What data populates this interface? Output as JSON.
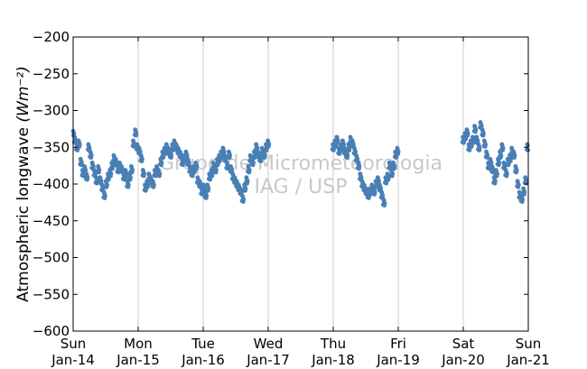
{
  "chart_data": {
    "type": "scatter",
    "title": "",
    "xlabel": "",
    "ylabel": "Atmospheric longwave",
    "ylabel_unit": "(Wm⁻²)",
    "xlim": [
      0,
      7
    ],
    "ylim": [
      -600,
      -200
    ],
    "grid": "vertical",
    "marker_color": "#4a7fb5",
    "watermark": [
      "Grupo de Micrometeorologia",
      "IAG / USP"
    ],
    "x_ticks": [
      {
        "value": 0,
        "day": "Sun",
        "date": "Jan-14"
      },
      {
        "value": 1,
        "day": "Mon",
        "date": "Jan-15"
      },
      {
        "value": 2,
        "day": "Tue",
        "date": "Jan-16"
      },
      {
        "value": 3,
        "day": "Wed",
        "date": "Jan-17"
      },
      {
        "value": 4,
        "day": "Thu",
        "date": "Jan-18"
      },
      {
        "value": 5,
        "day": "Fri",
        "date": "Jan-19"
      },
      {
        "value": 6,
        "day": "Sat",
        "date": "Jan-20"
      },
      {
        "value": 7,
        "day": "Sun",
        "date": "Jan-21"
      }
    ],
    "y_ticks": [
      -200,
      -250,
      -300,
      -350,
      -400,
      -450,
      -500,
      -550,
      -600
    ],
    "series": [
      {
        "segments": [
          {
            "x": [
              0.0,
              0.03,
              0.06,
              0.09,
              0.12,
              0.15,
              0.18,
              0.21,
              0.24,
              0.27,
              0.3,
              0.33,
              0.36,
              0.39,
              0.42,
              0.45,
              0.48,
              0.51,
              0.54,
              0.57,
              0.6,
              0.63,
              0.66,
              0.69,
              0.72,
              0.75,
              0.78,
              0.81,
              0.84,
              0.87,
              0.9,
              0.93,
              0.96,
              0.99,
              1.02,
              1.05,
              1.08,
              1.11,
              1.14,
              1.17,
              1.2,
              1.23,
              1.26,
              1.29,
              1.32,
              1.35,
              1.38,
              1.41,
              1.44,
              1.47,
              1.5,
              1.53,
              1.56,
              1.59,
              1.62,
              1.65,
              1.68,
              1.71,
              1.74,
              1.77,
              1.8,
              1.83,
              1.86,
              1.89,
              1.92,
              1.95,
              1.98,
              2.01,
              2.04,
              2.07,
              2.1,
              2.13,
              2.16,
              2.19,
              2.22,
              2.25,
              2.28,
              2.31,
              2.34,
              2.37,
              2.4,
              2.43,
              2.46,
              2.49,
              2.52,
              2.55,
              2.58,
              2.61,
              2.64,
              2.67,
              2.7,
              2.73,
              2.76,
              2.79,
              2.82,
              2.85,
              2.88,
              2.91,
              2.94,
              2.97,
              3.0
            ],
            "y": [
              -330,
              -340,
              -350,
              -345,
              -370,
              -385,
              -380,
              -390,
              -350,
              -360,
              -375,
              -385,
              -395,
              -380,
              -395,
              -405,
              -415,
              -400,
              -390,
              -385,
              -375,
              -365,
              -370,
              -380,
              -375,
              -380,
              -390,
              -385,
              -400,
              -390,
              -380,
              -345,
              -330,
              -350,
              -355,
              -365,
              -385,
              -405,
              -400,
              -390,
              -395,
              -400,
              -385,
              -380,
              -385,
              -370,
              -360,
              -355,
              -350,
              -355,
              -360,
              -350,
              -345,
              -350,
              -355,
              -360,
              -370,
              -365,
              -360,
              -370,
              -380,
              -385,
              -380,
              -375,
              -395,
              -400,
              -410,
              -405,
              -415,
              -405,
              -390,
              -385,
              -375,
              -380,
              -370,
              -365,
              -360,
              -355,
              -365,
              -375,
              -360,
              -380,
              -390,
              -395,
              -400,
              -405,
              -410,
              -420,
              -405,
              -395,
              -380,
              -365,
              -370,
              -360,
              -350,
              -360,
              -365,
              -355,
              -360,
              -350,
              -345
            ]
          }
        ]
      },
      {
        "segments": [
          {
            "x": [
              4.0,
              4.03,
              4.06,
              4.09,
              4.12,
              4.15,
              4.18,
              4.21,
              4.24,
              4.27,
              4.3,
              4.33,
              4.36,
              4.39,
              4.42,
              4.45,
              4.48,
              4.51,
              4.54,
              4.57,
              4.6,
              4.63,
              4.66,
              4.69,
              4.72,
              4.75,
              4.78,
              4.81,
              4.84,
              4.87,
              4.9,
              4.93,
              4.96,
              4.99
            ],
            "y": [
              -350,
              -345,
              -340,
              -355,
              -350,
              -345,
              -355,
              -360,
              -350,
              -340,
              -345,
              -355,
              -365,
              -375,
              -390,
              -400,
              -405,
              -410,
              -415,
              -410,
              -405,
              -410,
              -400,
              -395,
              -405,
              -415,
              -425,
              -395,
              -390,
              -375,
              -385,
              -375,
              -360,
              -355
            ]
          },
          {
            "x": [
              6.0,
              6.03,
              6.06,
              6.09,
              6.12,
              6.15,
              6.18,
              6.21,
              6.24,
              6.27,
              6.3,
              6.33,
              6.36,
              6.39,
              6.42,
              6.45,
              6.48,
              6.51,
              6.54,
              6.57,
              6.6,
              6.63,
              6.66,
              6.69,
              6.72,
              6.75,
              6.78,
              6.81,
              6.84,
              6.87,
              6.9,
              6.93,
              6.96,
              6.99
            ],
            "y": [
              -340,
              -335,
              -330,
              -350,
              -345,
              -340,
              -325,
              -340,
              -350,
              -320,
              -330,
              -345,
              -360,
              -375,
              -370,
              -380,
              -395,
              -385,
              -370,
              -360,
              -350,
              -375,
              -385,
              -370,
              -365,
              -355,
              -360,
              -380,
              -400,
              -415,
              -420,
              -410,
              -395,
              -350
            ]
          }
        ]
      }
    ]
  }
}
